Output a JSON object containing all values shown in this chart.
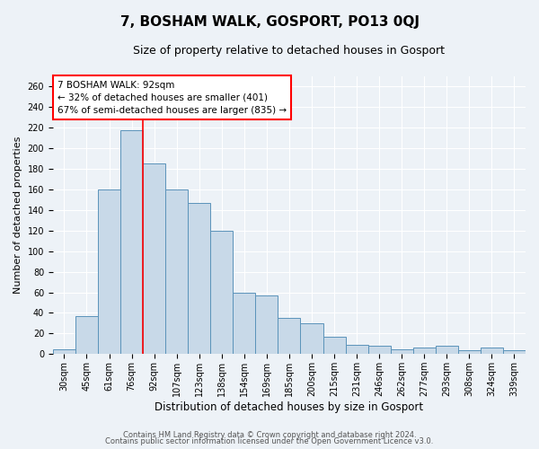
{
  "title": "7, BOSHAM WALK, GOSPORT, PO13 0QJ",
  "subtitle": "Size of property relative to detached houses in Gosport",
  "xlabel": "Distribution of detached houses by size in Gosport",
  "ylabel": "Number of detached properties",
  "bin_labels": [
    "30sqm",
    "45sqm",
    "61sqm",
    "76sqm",
    "92sqm",
    "107sqm",
    "123sqm",
    "138sqm",
    "154sqm",
    "169sqm",
    "185sqm",
    "200sqm",
    "215sqm",
    "231sqm",
    "246sqm",
    "262sqm",
    "277sqm",
    "293sqm",
    "308sqm",
    "324sqm",
    "339sqm"
  ],
  "bar_heights": [
    5,
    37,
    160,
    218,
    185,
    160,
    147,
    120,
    60,
    57,
    35,
    30,
    17,
    9,
    8,
    5,
    6,
    8,
    4,
    6,
    4
  ],
  "bar_color": "#c8d9e8",
  "bar_edge_color": "#5b93ba",
  "red_line_x": 4,
  "annotation_text": "7 BOSHAM WALK: 92sqm\n← 32% of detached houses are smaller (401)\n67% of semi-detached houses are larger (835) →",
  "annotation_box_color": "white",
  "annotation_box_edge_color": "red",
  "ylim": [
    0,
    270
  ],
  "background_color": "#edf2f7",
  "plot_background": "#edf2f7",
  "grid_color": "white",
  "footer_line1": "Contains HM Land Registry data © Crown copyright and database right 2024.",
  "footer_line2": "Contains public sector information licensed under the Open Government Licence v3.0.",
  "title_fontsize": 11,
  "subtitle_fontsize": 9,
  "xlabel_fontsize": 8.5,
  "ylabel_fontsize": 8,
  "tick_fontsize": 7,
  "annotation_fontsize": 7.5,
  "footer_fontsize": 6
}
